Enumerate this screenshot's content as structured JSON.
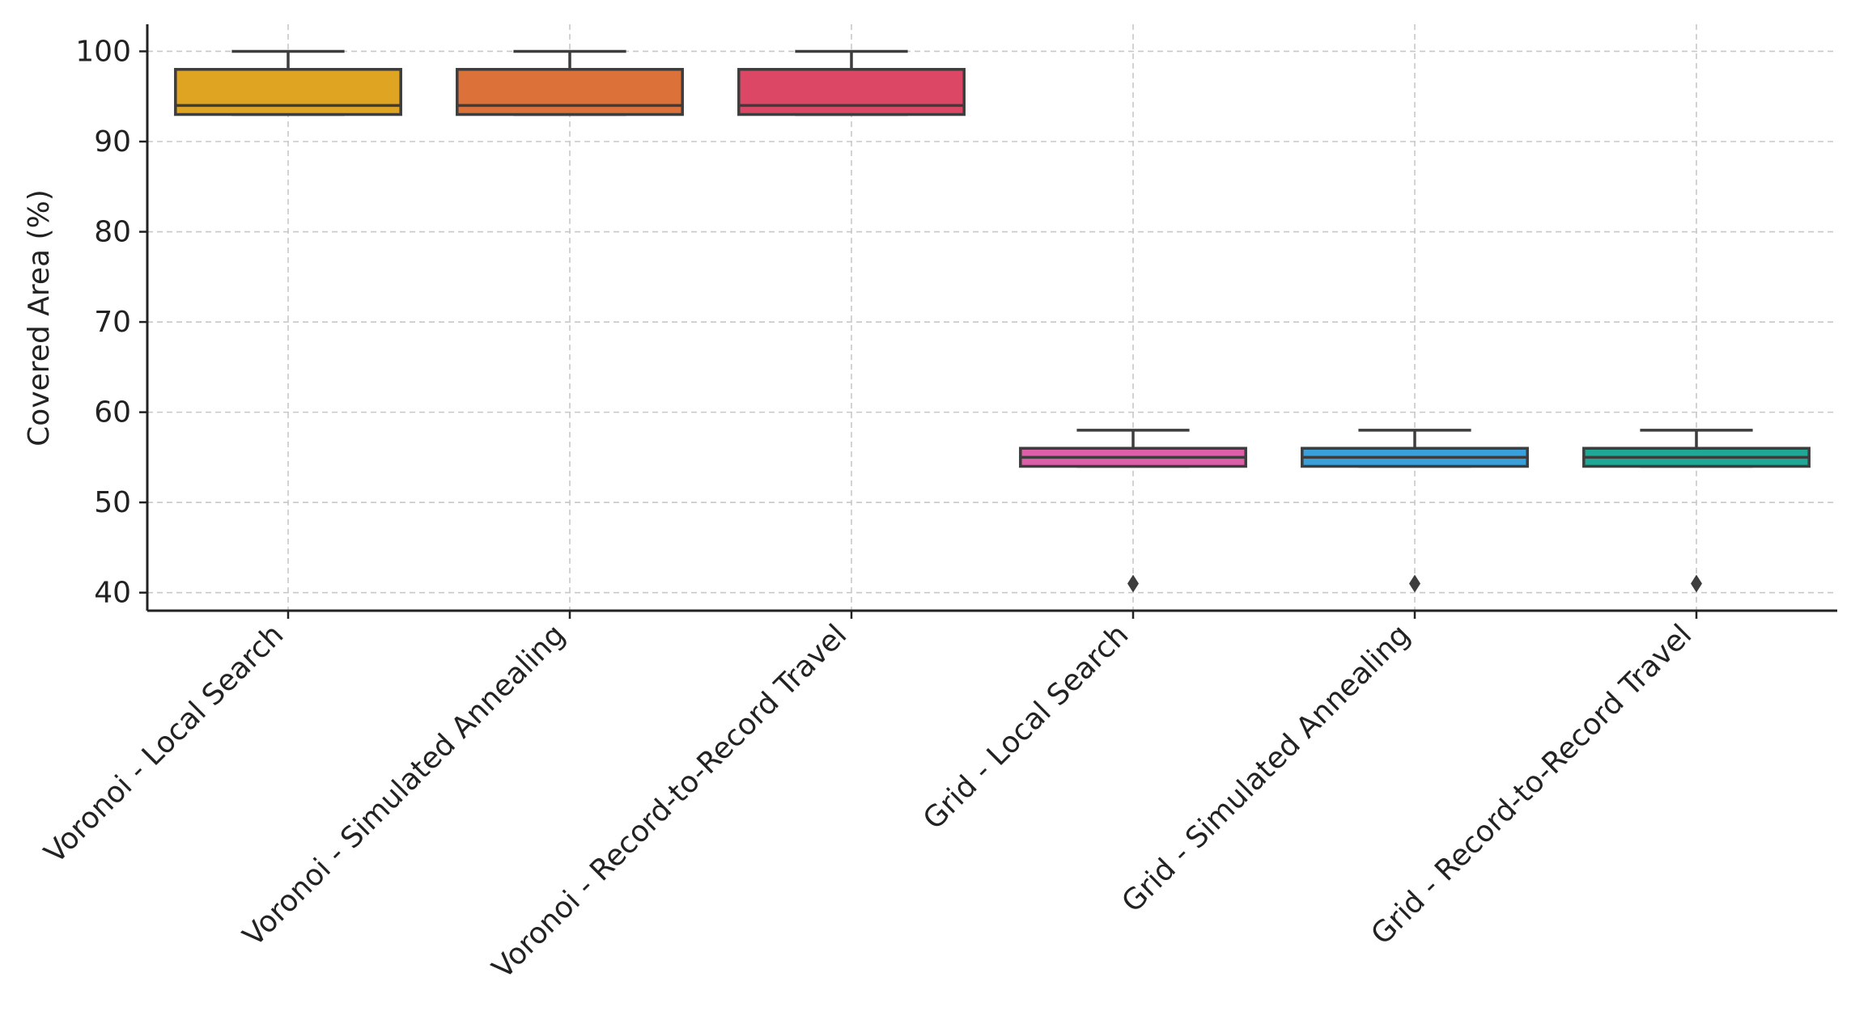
{
  "chart_data": {
    "type": "box",
    "title": "",
    "xlabel": "",
    "ylabel": "Covered Area (%)",
    "ylim": [
      38,
      103
    ],
    "yticks": [
      40,
      50,
      60,
      70,
      80,
      90,
      100
    ],
    "grid": true,
    "categories": [
      "Voronoi - Local Search",
      "Voronoi - Simulated Annealing",
      "Voronoi - Record-to-Record Travel",
      "Grid - Local Search",
      "Grid - Simulated Annealing",
      "Grid - Record-to-Record Travel"
    ],
    "boxes": [
      {
        "name": "Voronoi - Local Search",
        "whisker_low": 93,
        "q1": 93,
        "median": 94,
        "q3": 98,
        "whisker_high": 100,
        "outliers": [],
        "color": "#e0a423"
      },
      {
        "name": "Voronoi - Simulated Annealing",
        "whisker_low": 93,
        "q1": 93,
        "median": 94,
        "q3": 98,
        "whisker_high": 100,
        "outliers": [],
        "color": "#dd713a"
      },
      {
        "name": "Voronoi - Record-to-Record Travel",
        "whisker_low": 93,
        "q1": 93,
        "median": 94,
        "q3": 98,
        "whisker_high": 100,
        "outliers": [],
        "color": "#dc4765"
      },
      {
        "name": "Grid - Local Search",
        "whisker_low": 54,
        "q1": 54,
        "median": 55,
        "q3": 56,
        "whisker_high": 58,
        "outliers": [
          41
        ],
        "color": "#de5fa9"
      },
      {
        "name": "Grid - Simulated Annealing",
        "whisker_low": 54,
        "q1": 54,
        "median": 55,
        "q3": 56,
        "whisker_high": 58,
        "outliers": [
          41
        ],
        "color": "#3aa0dc"
      },
      {
        "name": "Grid - Record-to-Record Travel",
        "whisker_low": 54,
        "q1": 54,
        "median": 55,
        "q3": 56,
        "whisker_high": 58,
        "outliers": [
          41
        ],
        "color": "#1fa895"
      }
    ]
  }
}
